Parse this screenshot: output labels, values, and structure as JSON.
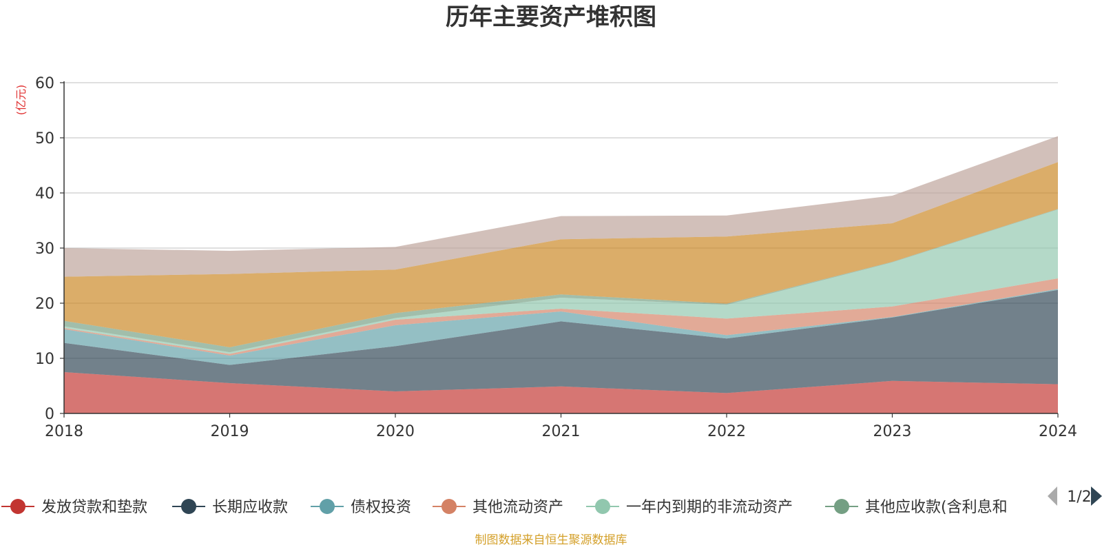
{
  "chart_data": {
    "type": "area",
    "stacked": true,
    "title": "历年主要资产堆积图",
    "ylabel": "(亿元)",
    "xlabel": "",
    "categories": [
      "2018",
      "2019",
      "2020",
      "2021",
      "2022",
      "2023",
      "2024"
    ],
    "ylim": [
      0,
      60
    ],
    "yticks": [
      0,
      10,
      20,
      30,
      40,
      50,
      60
    ],
    "grid": true,
    "series": [
      {
        "name": "发放贷款和垫款",
        "color": "#c23531",
        "values": [
          7.5,
          5.5,
          4.0,
          4.9,
          3.7,
          5.9,
          5.3
        ]
      },
      {
        "name": "长期应收款",
        "color": "#2f4554",
        "values": [
          5.3,
          3.3,
          8.2,
          11.8,
          9.9,
          11.5,
          17.1
        ]
      },
      {
        "name": "债权投资",
        "color": "#61a0a8",
        "values": [
          2.5,
          1.7,
          3.8,
          1.8,
          0.6,
          0.1,
          0.2
        ]
      },
      {
        "name": "其他流动资产",
        "color": "#d48265",
        "values": [
          0.2,
          0.3,
          1.0,
          0.5,
          3.0,
          1.9,
          1.9
        ]
      },
      {
        "name": "一年内到期的非流动资产",
        "color": "#91c7ae",
        "values": [
          0.3,
          0.3,
          0.3,
          2.0,
          2.5,
          8.0,
          12.5
        ]
      },
      {
        "name": "其他应收款(含利息和",
        "color": "#749f83",
        "values": [
          1.0,
          0.9,
          0.9,
          0.6,
          0.2,
          0.1,
          0.1
        ]
      },
      {
        "name": "",
        "color": "#ca8622",
        "values": [
          8.0,
          13.3,
          7.9,
          10.0,
          12.2,
          7.0,
          8.5
        ]
      },
      {
        "name": "",
        "color": "#bda29a",
        "values": [
          5.2,
          4.2,
          4.1,
          4.2,
          3.8,
          5.0,
          4.7
        ]
      }
    ]
  },
  "legend": {
    "page_label": "1/2"
  },
  "footer": {
    "source": "制图数据来自恒生聚源数据库"
  },
  "icons": {
    "prev": "triangle-left-icon",
    "next": "triangle-right-icon"
  }
}
